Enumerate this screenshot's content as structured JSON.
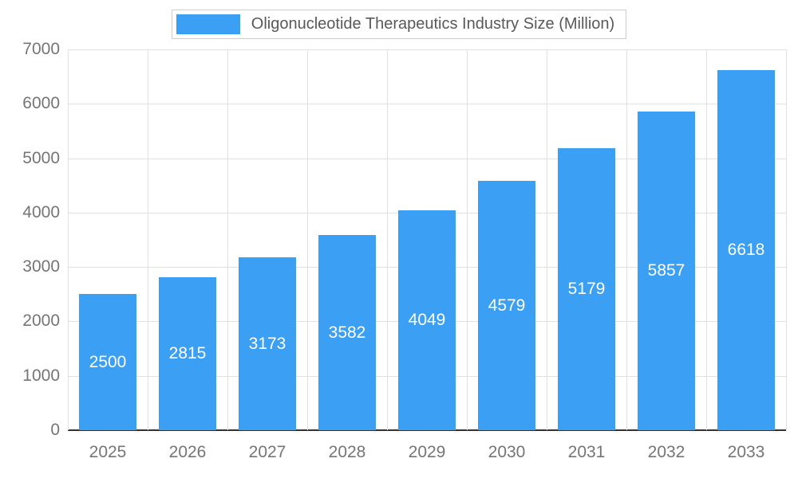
{
  "chart_data": {
    "type": "bar",
    "title": "Oligonucleotide Therapeutics Industry Size (Million)",
    "categories": [
      "2025",
      "2026",
      "2027",
      "2028",
      "2029",
      "2030",
      "2031",
      "2032",
      "2033"
    ],
    "values": [
      2500,
      2815,
      3173,
      3582,
      4049,
      4579,
      5179,
      5857,
      6618
    ],
    "xlabel": "",
    "ylabel": "",
    "ylim": [
      0,
      7000
    ],
    "yticks": [
      0,
      1000,
      2000,
      3000,
      4000,
      5000,
      6000,
      7000
    ],
    "grid": true,
    "legend_position": "top",
    "colors": {
      "bar": "#3b9ff3",
      "grid": "#e0e0e0",
      "axis": "#333333",
      "tick_text": "#757575",
      "title_text": "#58595b",
      "bar_label_text": "#ffffff",
      "legend_border": "#cccccc"
    }
  }
}
